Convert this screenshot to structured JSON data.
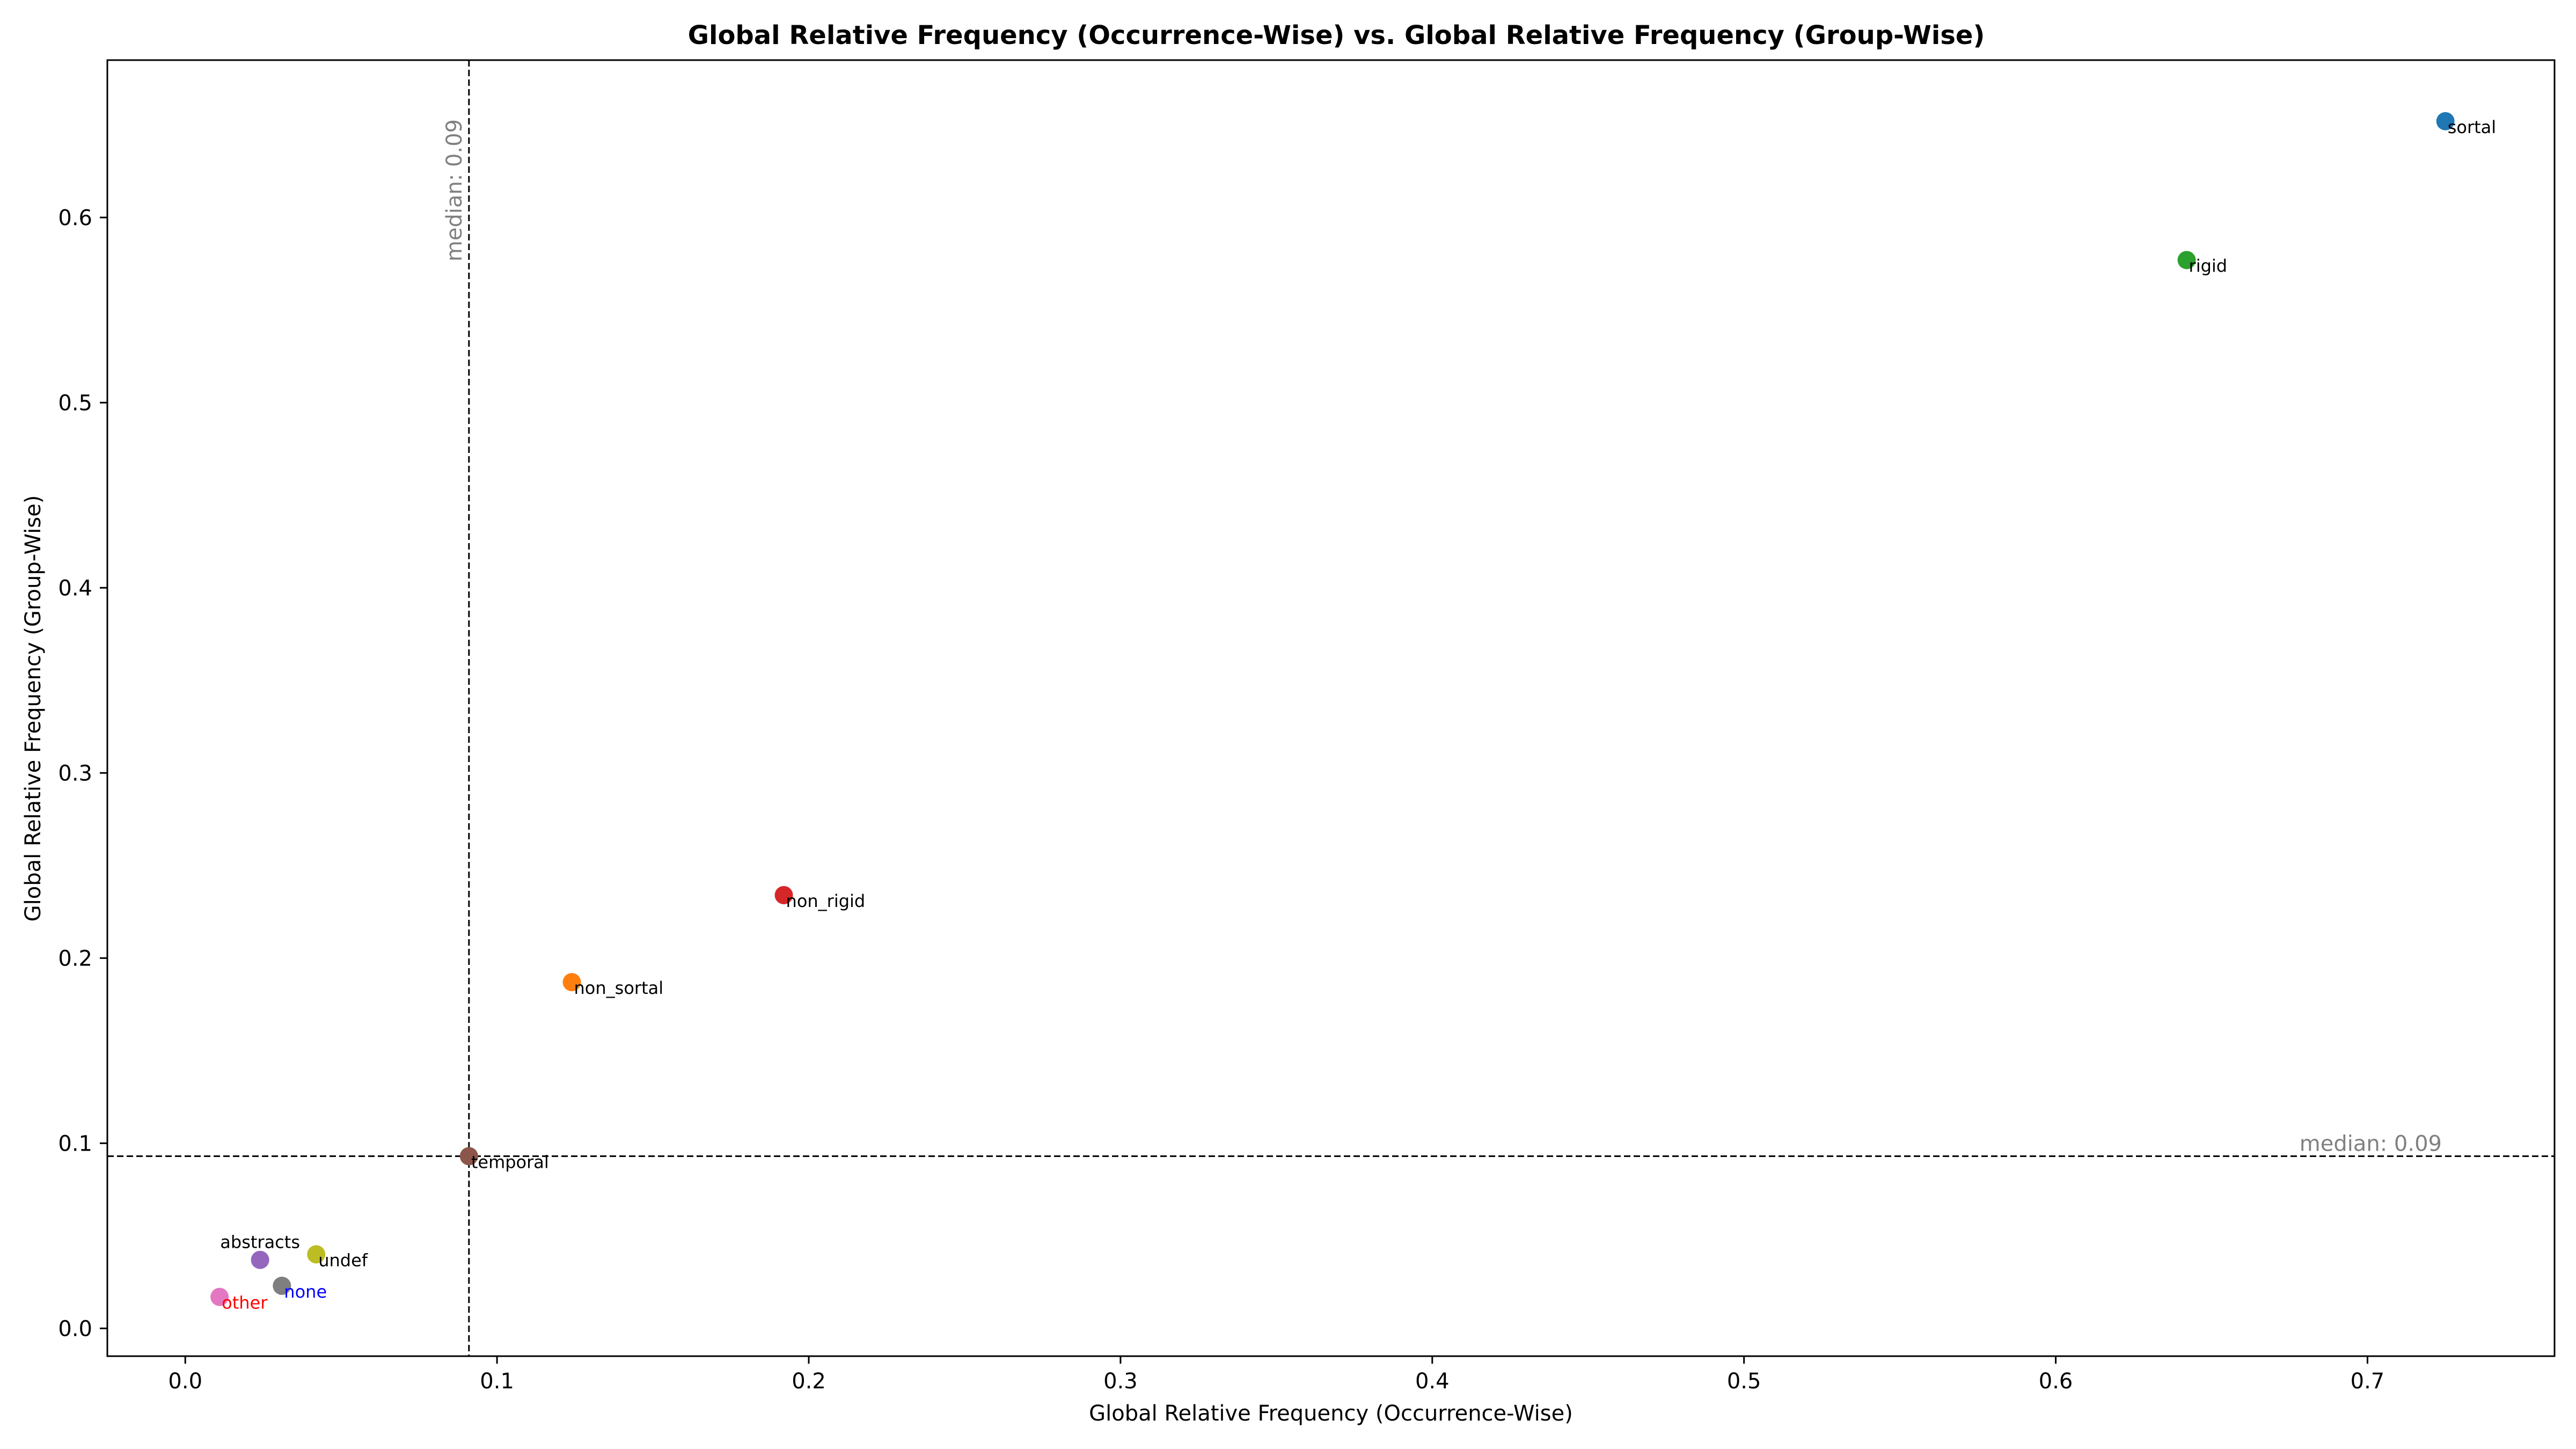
{
  "chart_data": {
    "type": "scatter",
    "title": "Global Relative Frequency (Occurrence-Wise) vs. Global Relative Frequency (Group-Wise)",
    "xlabel": "Global Relative Frequency (Occurrence-Wise)",
    "ylabel": "Global Relative Frequency (Group-Wise)",
    "xlim": [
      -0.025,
      0.76
    ],
    "ylim": [
      -0.015,
      0.685
    ],
    "xticks": [
      0.0,
      0.1,
      0.2,
      0.3,
      0.4,
      0.5,
      0.6,
      0.7
    ],
    "xtick_labels": [
      "0.0",
      "0.1",
      "0.2",
      "0.3",
      "0.4",
      "0.5",
      "0.6",
      "0.7"
    ],
    "yticks": [
      0.0,
      0.1,
      0.2,
      0.3,
      0.4,
      0.5,
      0.6
    ],
    "ytick_labels": [
      "0.0",
      "0.1",
      "0.2",
      "0.3",
      "0.4",
      "0.5",
      "0.6"
    ],
    "grid": false,
    "median_x": {
      "value": 0.091,
      "label": "median: 0.09",
      "color": "#808080"
    },
    "median_y": {
      "value": 0.093,
      "label": "median: 0.09",
      "color": "#808080"
    },
    "points": [
      {
        "label": "sortal",
        "x": 0.725,
        "y": 0.652,
        "color": "#1f77b4",
        "label_color": "#000000",
        "label_pos": "below-right"
      },
      {
        "label": "rigid",
        "x": 0.642,
        "y": 0.577,
        "color": "#2ca02c",
        "label_color": "#000000",
        "label_pos": "below-right"
      },
      {
        "label": "non_rigid",
        "x": 0.192,
        "y": 0.234,
        "color": "#d62728",
        "label_color": "#000000",
        "label_pos": "below-right"
      },
      {
        "label": "non_sortal",
        "x": 0.124,
        "y": 0.187,
        "color": "#ff7f0e",
        "label_color": "#000000",
        "label_pos": "below-right"
      },
      {
        "label": "temporal",
        "x": 0.091,
        "y": 0.093,
        "color": "#8c564b",
        "label_color": "#000000",
        "label_pos": "below-right"
      },
      {
        "label": "abstracts",
        "x": 0.024,
        "y": 0.037,
        "color": "#9467bd",
        "label_color": "#000000",
        "label_pos": "above"
      },
      {
        "label": "undef",
        "x": 0.042,
        "y": 0.04,
        "color": "#bcbd22",
        "label_color": "#000000",
        "label_pos": "below-right"
      },
      {
        "label": "none",
        "x": 0.031,
        "y": 0.023,
        "color": "#7f7f7f",
        "label_color": "#0000ff",
        "label_pos": "below-right"
      },
      {
        "label": "other",
        "x": 0.011,
        "y": 0.017,
        "color": "#e377c2",
        "label_color": "#ff0000",
        "label_pos": "below-right"
      }
    ]
  }
}
